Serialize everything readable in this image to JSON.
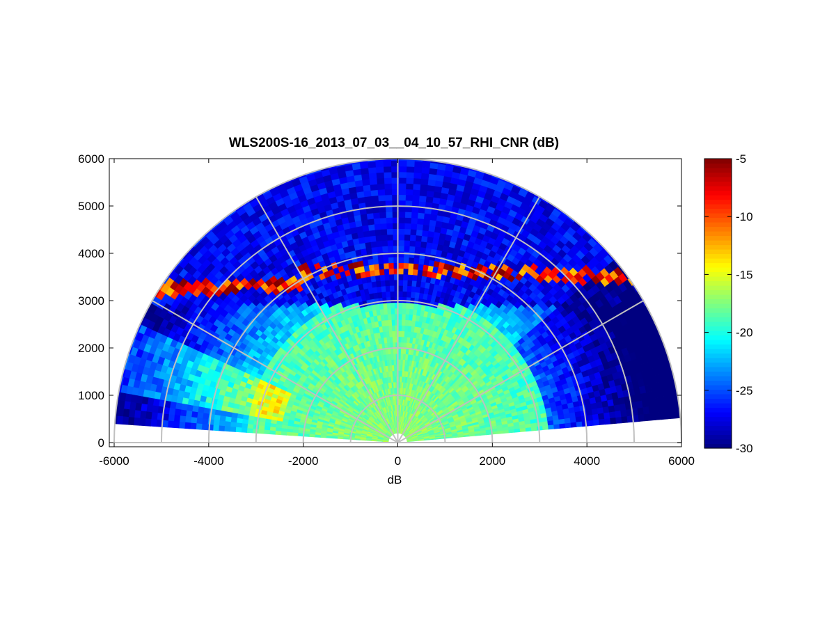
{
  "chart_data": {
    "type": "heatmap",
    "subtype": "polar RHI sector scan",
    "title": "WLS200S-16_2013_07_03__04_10_57_RHI_CNR (dB)",
    "xlabel": "dB",
    "ylabel": "",
    "xlim": [
      -6000,
      6000
    ],
    "ylim": [
      0,
      6000
    ],
    "xticks": [
      -6000,
      -4000,
      -2000,
      0,
      2000,
      4000,
      6000
    ],
    "yticks": [
      0,
      1000,
      2000,
      3000,
      4000,
      5000,
      6000
    ],
    "range_rings_m": [
      1000,
      2000,
      3000,
      4000,
      5000,
      6000
    ],
    "spokes_deg": [
      0,
      30,
      60,
      90,
      120,
      150,
      180
    ],
    "scan_elevation_deg": [
      5,
      175
    ],
    "max_range_m": 6000,
    "colormap": "jet",
    "colorbar": {
      "clim": [
        -30,
        -5
      ],
      "ticks": [
        -30,
        -25,
        -20,
        -15,
        -10,
        -5
      ]
    },
    "field_description_values": {
      "near_range_cnr_db": -17,
      "boundary_layer_cnr_db": -19,
      "cloud_layer_height_m": 3600,
      "cloud_layer_cnr_db": -5,
      "free_troposphere_cnr_db": -27
    },
    "grid": true,
    "legend": "none"
  }
}
